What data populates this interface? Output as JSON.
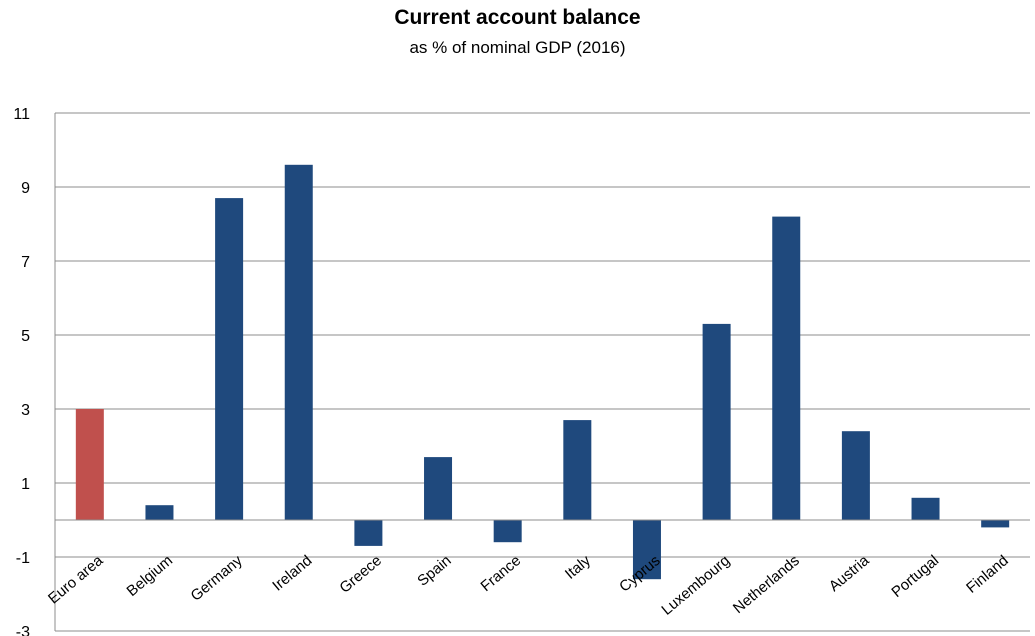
{
  "chart_data": {
    "type": "bar",
    "title": "Current account balance",
    "subtitle": "as % of nominal GDP (2016)",
    "xlabel": "",
    "ylabel": "",
    "ylim": [
      -3,
      11
    ],
    "yticks": [
      11,
      9,
      7,
      5,
      3,
      1,
      -1,
      -3
    ],
    "grid": true,
    "categories": [
      "Euro area",
      "Belgium",
      "Germany",
      "Ireland",
      "Greece",
      "Spain",
      "France",
      "Italy",
      "Cyprus",
      "Luxembourg",
      "Netherlands",
      "Austria",
      "Portugal",
      "Finland"
    ],
    "values": [
      3.0,
      0.4,
      8.7,
      9.6,
      -0.7,
      1.7,
      -0.6,
      2.7,
      -1.6,
      5.3,
      8.2,
      2.4,
      0.6,
      -0.2
    ],
    "colors": [
      "#c0504d",
      "#1f497d",
      "#1f497d",
      "#1f497d",
      "#1f497d",
      "#1f497d",
      "#1f497d",
      "#1f497d",
      "#1f497d",
      "#1f497d",
      "#1f497d",
      "#1f497d",
      "#1f497d",
      "#1f497d"
    ]
  }
}
